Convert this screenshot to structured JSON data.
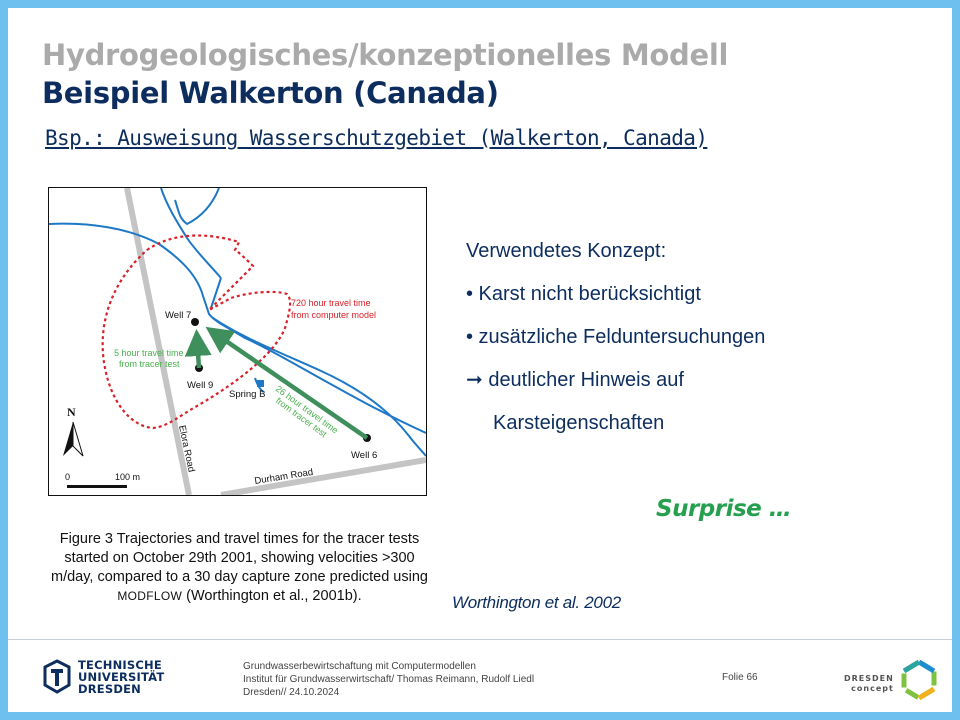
{
  "header": {
    "title_line1": "Hydrogeologisches/konzeptionelles Modell",
    "title_line2": "Beispiel Walkerton (Canada)",
    "subtitle": "Bsp.: Ausweisung Wasserschutzgebiet (Walkerton, Canada)"
  },
  "figure": {
    "labels": {
      "well7": "Well 7",
      "well9": "Well 9",
      "well6": "Well 6",
      "spring_b": "Spring B",
      "travel720_l1": "720 hour travel time",
      "travel720_l2": "from computer model",
      "travel5_l1": "5 hour travel time",
      "travel5_l2": "from tracer test",
      "travel26_l1": "26 hour travel time",
      "travel26_l2": "from tracer test",
      "elora_road": "Elora Road",
      "durham_road": "Durham Road",
      "north": "N",
      "scale_0": "0",
      "scale_100": "100 m"
    },
    "caption_main": "Figure 3  Trajectories and travel times for the tracer tests started on October 29th 2001, showing velocities >300 m/day, compared to a 30 day capture zone predicted using ",
    "caption_modflow": "MODFLOW",
    "caption_tail": " (Worthington et al., 2001b)."
  },
  "concept": {
    "heading": "Verwendetes Konzept:",
    "bullet1": "• Karst nicht berücksichtigt",
    "bullet2": "• zusätzliche Felduntersuchungen",
    "arrow_line": "➞  deutlicher Hinweis auf",
    "arrow_line2": "Karsteigenschaften"
  },
  "surprise": "Surprise …",
  "citation": "Worthington et al. 2002",
  "footer": {
    "tud_line1": "TECHNISCHE",
    "tud_line2": "UNIVERSITÄT",
    "tud_line3": "DRESDEN",
    "course": "Grundwasserbewirtschaftung mit Computermodellen",
    "institute": "Institut für Grundwasserwirtschaft/ Thomas Reimann, Rudolf Liedl",
    "date": "Dresden// 24.10.2024",
    "slide_label": "Folie 66",
    "dc_line1": "DRESDEN",
    "dc_line2": "concept"
  },
  "colors": {
    "frame": "#6ec1ee",
    "navy": "#0d2d5e",
    "green": "#26a04e",
    "river": "#1d78c8",
    "zone": "#d9212a",
    "arrow": "#3f8f5d"
  }
}
